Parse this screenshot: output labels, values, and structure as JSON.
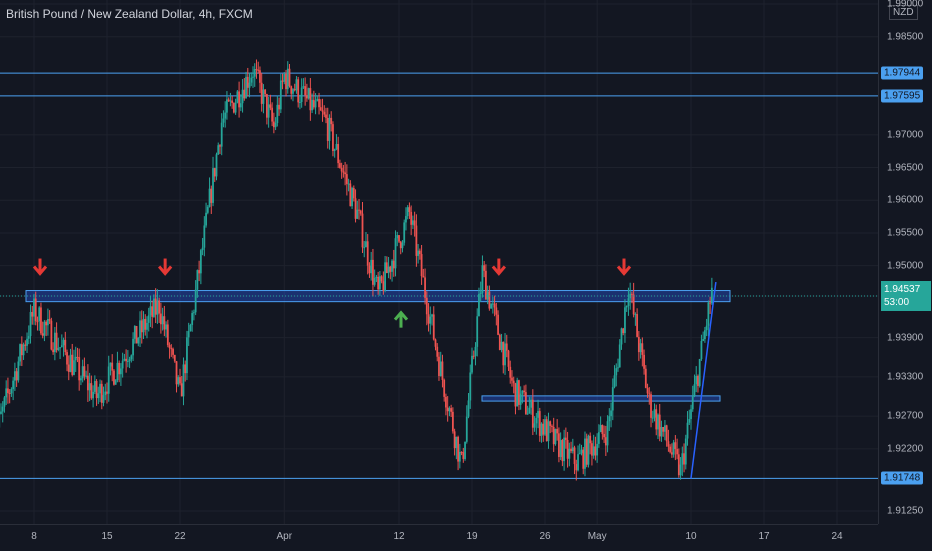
{
  "header": {
    "title": "British Pound / New Zealand Dollar, 4h, FXCM"
  },
  "price_axis": {
    "currency": "NZD",
    "ticks": [
      "1.99000",
      "1.98500",
      "1.97944",
      "1.97595",
      "1.97000",
      "1.96500",
      "1.96000",
      "1.95500",
      "1.95000",
      "1.94537",
      "1.93900",
      "1.93300",
      "1.92700",
      "1.92200",
      "1.91748",
      "1.91250"
    ],
    "tick_values": [
      1.99,
      1.985,
      1.97944,
      1.97595,
      1.97,
      1.965,
      1.96,
      1.955,
      1.95,
      1.94537,
      1.939,
      1.933,
      1.927,
      1.922,
      1.91748,
      1.9125
    ],
    "highlight_levels": [
      "1.97944",
      "1.97595",
      "1.91748"
    ],
    "last_price": "1.94537",
    "countdown": "53:00"
  },
  "time_axis": {
    "ticks": [
      "8",
      "15",
      "22",
      "Apr",
      "12",
      "19",
      "26",
      "May",
      "10",
      "17",
      "24"
    ]
  },
  "colors": {
    "up": "#26a69a",
    "down": "#ef5350",
    "level_line": "#4ba0f0",
    "zone": "#2962ff",
    "arrow_down": "#e53935",
    "arrow_up": "#4caf50"
  },
  "chart_data": {
    "type": "candlestick",
    "title": "British Pound / New Zealand Dollar, 4h, FXCM",
    "instrument": "GBP/NZD",
    "timeframe": "4h",
    "y_range": [
      1.911,
      1.99
    ],
    "horizontal_levels": [
      1.97944,
      1.97595,
      1.91748
    ],
    "zones": [
      {
        "name": "resistance-support",
        "from": 1.9445,
        "to": 1.9462
      },
      {
        "name": "mid-support",
        "from": 1.9293,
        "to": 1.9301
      }
    ],
    "close_path_points": [
      {
        "x": "Mar 4",
        "y": 1.9225
      },
      {
        "x": "Mar 8",
        "y": 1.943
      },
      {
        "x": "Mar 14",
        "y": 1.93
      },
      {
        "x": "Mar 20",
        "y": 1.944
      },
      {
        "x": "Mar 22",
        "y": 1.93
      },
      {
        "x": "Mar 26",
        "y": 1.972
      },
      {
        "x": "Mar 29",
        "y": 1.98
      },
      {
        "x": "Mar 31",
        "y": 1.971
      },
      {
        "x": "Apr 1",
        "y": 1.979
      },
      {
        "x": "Apr 5",
        "y": 1.972
      },
      {
        "x": "Apr 8",
        "y": 1.958
      },
      {
        "x": "Apr 10",
        "y": 1.9455
      },
      {
        "x": "Apr 13",
        "y": 1.958
      },
      {
        "x": "Apr 16",
        "y": 1.934
      },
      {
        "x": "Apr 18",
        "y": 1.9195
      },
      {
        "x": "Apr 20",
        "y": 1.949
      },
      {
        "x": "Apr 23",
        "y": 1.931
      },
      {
        "x": "Apr 27",
        "y": 1.923
      },
      {
        "x": "Apr 29",
        "y": 1.92
      },
      {
        "x": "May 2",
        "y": 1.925
      },
      {
        "x": "May 4",
        "y": 1.947
      },
      {
        "x": "May 6",
        "y": 1.929
      },
      {
        "x": "May 9",
        "y": 1.9185
      },
      {
        "x": "May 12",
        "y": 1.946
      }
    ],
    "annotations": {
      "down_arrows": [
        "Mar 8",
        "Mar 20",
        "Apr 21",
        "May 3"
      ],
      "up_arrows": [
        "Apr 12"
      ],
      "trendline": {
        "from": {
          "x": "May 10",
          "y": 1.9175
        },
        "to": {
          "x": "May 12",
          "y": 1.9475
        }
      }
    }
  }
}
